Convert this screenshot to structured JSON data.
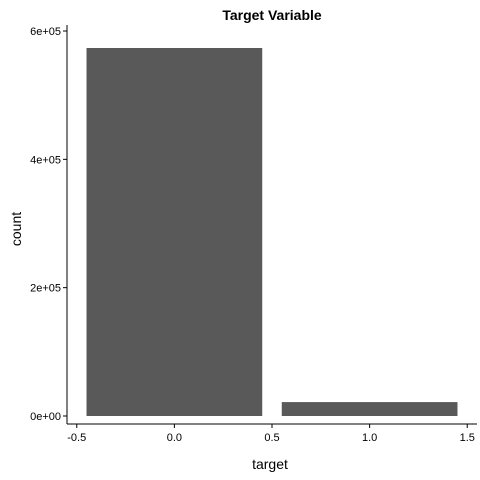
{
  "chart_data": {
    "type": "bar",
    "title": "Target Variable",
    "xlabel": "target",
    "ylabel": "count",
    "bars": [
      {
        "x": 0,
        "width": 0.9,
        "value": 573518
      },
      {
        "x": 1,
        "width": 0.9,
        "value": 21694
      }
    ],
    "xlim": [
      -0.55,
      1.55
    ],
    "ylim": [
      0,
      600000
    ],
    "x_ticks": [
      {
        "value": -0.5,
        "label": "-0.5"
      },
      {
        "value": 0.0,
        "label": "0.0"
      },
      {
        "value": 0.5,
        "label": "0.5"
      },
      {
        "value": 1.0,
        "label": "1.0"
      },
      {
        "value": 1.5,
        "label": "1.5"
      }
    ],
    "y_ticks": [
      {
        "value": 0,
        "label": "0e+00"
      },
      {
        "value": 200000,
        "label": "2e+05"
      },
      {
        "value": 400000,
        "label": "4e+05"
      },
      {
        "value": 600000,
        "label": "6e+05"
      }
    ],
    "bar_color": "#595959",
    "grid": false
  }
}
